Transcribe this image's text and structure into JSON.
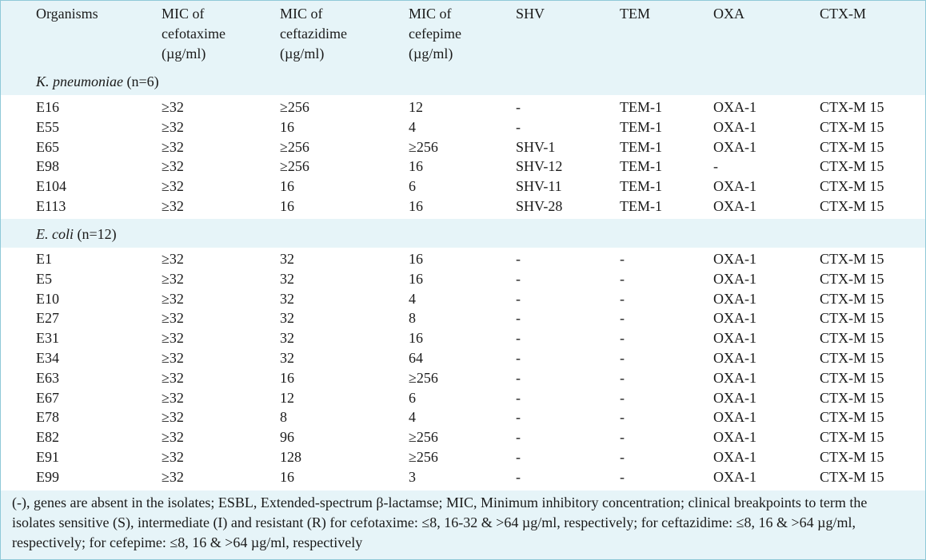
{
  "columns": [
    {
      "lines": [
        "Organisms"
      ]
    },
    {
      "lines": [
        "MIC of",
        "cefotaxime",
        "(µg/ml)"
      ]
    },
    {
      "lines": [
        "MIC of",
        "ceftazidime",
        "(µg/ml)"
      ]
    },
    {
      "lines": [
        "MIC of",
        "cefepime",
        "(µg/ml)"
      ]
    },
    {
      "lines": [
        "SHV"
      ]
    },
    {
      "lines": [
        "TEM"
      ]
    },
    {
      "lines": [
        "OXA"
      ]
    },
    {
      "lines": [
        "CTX-M"
      ]
    }
  ],
  "groups": [
    {
      "name": "K. pneumoniae",
      "count": "(n=6)",
      "rows": [
        [
          "E16",
          "≥32",
          "≥256",
          "12",
          "-",
          "TEM-1",
          "OXA-1",
          "CTX-M 15"
        ],
        [
          "E55",
          "≥32",
          "16",
          "4",
          "-",
          "TEM-1",
          "OXA-1",
          "CTX-M 15"
        ],
        [
          "E65",
          "≥32",
          "≥256",
          "≥256",
          "SHV-1",
          "TEM-1",
          "OXA-1",
          "CTX-M 15"
        ],
        [
          "E98",
          "≥32",
          "≥256",
          "16",
          "SHV-12",
          "TEM-1",
          "-",
          "CTX-M 15"
        ],
        [
          "E104",
          "≥32",
          "16",
          "6",
          "SHV-11",
          "TEM-1",
          "OXA-1",
          "CTX-M 15"
        ],
        [
          "E113",
          "≥32",
          "16",
          "16",
          "SHV-28",
          "TEM-1",
          "OXA-1",
          "CTX-M 15"
        ]
      ]
    },
    {
      "name": "E. coli",
      "count": "(n=12)",
      "rows": [
        [
          "E1",
          "≥32",
          "32",
          "16",
          "-",
          "-",
          "OXA-1",
          "CTX-M 15"
        ],
        [
          "E5",
          "≥32",
          "32",
          "16",
          "-",
          "-",
          "OXA-1",
          "CTX-M 15"
        ],
        [
          "E10",
          "≥32",
          "32",
          "4",
          "-",
          "-",
          "OXA-1",
          "CTX-M 15"
        ],
        [
          "E27",
          "≥32",
          "32",
          "8",
          "-",
          "-",
          "OXA-1",
          "CTX-M 15"
        ],
        [
          "E31",
          "≥32",
          "32",
          "16",
          "-",
          "-",
          "OXA-1",
          "CTX-M 15"
        ],
        [
          "E34",
          "≥32",
          "32",
          "64",
          "-",
          "-",
          "OXA-1",
          "CTX-M 15"
        ],
        [
          "E63",
          "≥32",
          "16",
          "≥256",
          "-",
          "-",
          "OXA-1",
          "CTX-M 15"
        ],
        [
          "E67",
          "≥32",
          "12",
          "6",
          "-",
          "-",
          "OXA-1",
          "CTX-M 15"
        ],
        [
          "E78",
          "≥32",
          "8",
          "4",
          "-",
          "-",
          "OXA-1",
          "CTX-M 15"
        ],
        [
          "E82",
          "≥32",
          "96",
          "≥256",
          "-",
          "-",
          "OXA-1",
          "CTX-M 15"
        ],
        [
          "E91",
          "≥32",
          "128",
          "≥256",
          "-",
          "-",
          "OXA-1",
          "CTX-M 15"
        ],
        [
          "E99",
          "≥32",
          "16",
          "3",
          "-",
          "-",
          "OXA-1",
          "CTX-M 15"
        ]
      ]
    }
  ],
  "footnote": "(-), genes are absent in the isolates; ESBL, Extended-spectrum β-lactamse; MIC, Minimum inhibitory concentration; clinical breakpoints to term the isolates sensitive (S), intermediate (I) and resistant (R) for cefotaxime: ≤8, 16-32 & >64 µg/ml, respectively; for ceftazidime: ≤8, 16 & >64 µg/ml, respectively; for cefepime: ≤8, 16 & >64 µg/ml, respectively"
}
